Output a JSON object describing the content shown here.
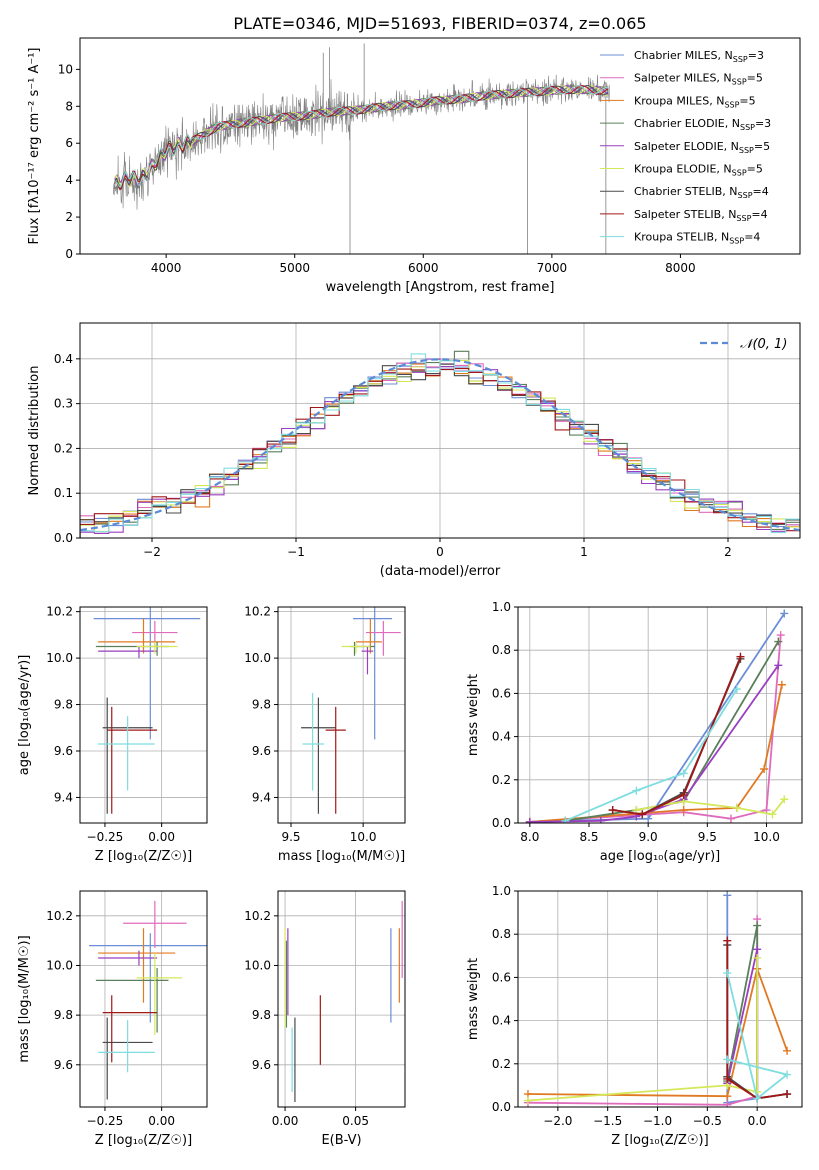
{
  "title": "PLATE=0346, MJD=51693, FIBERID=0374, z=0.065",
  "colors": {
    "Chabrier MILES": "#6b8ed6",
    "Salpeter MILES": "#e06bbd",
    "Kroupa MILES": "#e07a22",
    "Chabrier ELODIE": "#5a7f5a",
    "Salpeter ELODIE": "#9a3fbf",
    "Kroupa ELODIE": "#d4e85a",
    "Chabrier STELIB": "#4a4a4a",
    "Salpeter STELIB": "#a01818",
    "Kroupa STELIB": "#7fdde0",
    "data": "#808080",
    "normal": "#5b8bd6"
  },
  "chart_data": [
    {
      "id": "spectrum",
      "type": "line",
      "xlabel": "wavelength [Angstrom, rest frame]",
      "ylabel": "Flux [fλ10⁻¹⁷ erg cm⁻² s⁻¹ A⁻¹]",
      "xlim": [
        3330,
        8930
      ],
      "ylim": [
        0,
        11.7
      ],
      "xticks": [
        4000,
        5000,
        6000,
        7000,
        8000
      ],
      "yticks": [
        0,
        2,
        4,
        6,
        8,
        10
      ],
      "legend_position": "top-right",
      "legend": [
        {
          "label": "Chabrier MILES, N",
          "sub": "SSP",
          "tail": "=3",
          "key": "Chabrier MILES"
        },
        {
          "label": "Salpeter MILES, N",
          "sub": "SSP",
          "tail": "=5",
          "key": "Salpeter MILES"
        },
        {
          "label": "Kroupa MILES, N",
          "sub": "SSP",
          "tail": "=5",
          "key": "Kroupa MILES"
        },
        {
          "label": "Chabrier ELODIE, N",
          "sub": "SSP",
          "tail": "=3",
          "key": "Chabrier ELODIE"
        },
        {
          "label": "Salpeter ELODIE, N",
          "sub": "SSP",
          "tail": "=5",
          "key": "Salpeter ELODIE"
        },
        {
          "label": "Kroupa ELODIE, N",
          "sub": "SSP",
          "tail": "=5",
          "key": "Kroupa ELODIE"
        },
        {
          "label": "Chabrier STELIB, N",
          "sub": "SSP",
          "tail": "=4",
          "key": "Chabrier STELIB"
        },
        {
          "label": "Salpeter STELIB, N",
          "sub": "SSP",
          "tail": "=4",
          "key": "Salpeter STELIB"
        },
        {
          "label": "Kroupa STELIB, N",
          "sub": "SSP",
          "tail": "=4",
          "key": "Kroupa STELIB"
        }
      ],
      "continuum": {
        "x": [
          3600,
          3700,
          3800,
          3900,
          4000,
          4100,
          4200,
          4300,
          4400,
          4500,
          4700,
          4900,
          5100,
          5300,
          5500,
          5700,
          5900,
          6100,
          6300,
          6500,
          6700,
          6900,
          7100,
          7300,
          7450
        ],
        "y": [
          3.8,
          4.1,
          4.0,
          4.8,
          5.6,
          5.9,
          6.1,
          6.5,
          6.9,
          7.0,
          7.2,
          7.4,
          7.5,
          7.7,
          7.8,
          8.0,
          8.1,
          8.3,
          8.4,
          8.6,
          8.7,
          8.8,
          8.9,
          8.9,
          8.8
        ]
      },
      "data_noise": 1.6
    },
    {
      "id": "residuals",
      "type": "histogram",
      "xlabel": "(data-model)/error",
      "ylabel": "Normed distribution",
      "xlim": [
        -2.5,
        2.5
      ],
      "ylim": [
        0,
        0.48
      ],
      "xticks": [
        -2,
        -1,
        0,
        1,
        2
      ],
      "yticks": [
        0.0,
        0.1,
        0.2,
        0.3,
        0.4
      ],
      "legend": "𝒩(0, 1)",
      "legend_position": "top-right",
      "bin_width": 0.1
    },
    {
      "id": "age-vs-Z",
      "type": "errorbar",
      "xlabel": "Z [log₁₀(Z/Z☉)]",
      "ylabel": "age  [log₁₀(age/yr)]",
      "xlim": [
        -0.36,
        0.2
      ],
      "ylim": [
        9.29,
        10.22
      ],
      "xticks": [
        -0.25,
        0.0
      ],
      "yticks": [
        9.4,
        9.6,
        9.8,
        10.0,
        10.2
      ],
      "points": [
        {
          "key": "Chabrier MILES",
          "x": -0.05,
          "y": 10.17,
          "xerr": [
            0.25,
            0.22
          ],
          "yerr": [
            0.52,
            0.05
          ]
        },
        {
          "key": "Salpeter MILES",
          "x": -0.03,
          "y": 10.11,
          "xerr": [
            0.1,
            0.1
          ],
          "yerr": [
            0.06,
            0.05
          ]
        },
        {
          "key": "Kroupa MILES",
          "x": -0.08,
          "y": 10.07,
          "xerr": [
            0.2,
            0.14
          ],
          "yerr": [
            0.05,
            0.1
          ]
        },
        {
          "key": "Chabrier ELODIE",
          "x": -0.02,
          "y": 10.05,
          "xerr": [
            0.27,
            0.05
          ],
          "yerr": [
            0.04,
            0.02
          ]
        },
        {
          "key": "Salpeter ELODIE",
          "x": -0.1,
          "y": 10.03,
          "xerr": [
            0.18,
            0.08
          ],
          "yerr": [
            0.03,
            0.02
          ]
        },
        {
          "key": "Kroupa ELODIE",
          "x": -0.03,
          "y": 10.05,
          "xerr": [
            0.08,
            0.1
          ],
          "yerr": [
            0.03,
            0.02
          ]
        },
        {
          "key": "Chabrier STELIB",
          "x": -0.24,
          "y": 9.7,
          "xerr": [
            0.02,
            0.2
          ],
          "yerr": [
            0.37,
            0.13
          ]
        },
        {
          "key": "Salpeter STELIB",
          "x": -0.22,
          "y": 9.69,
          "xerr": [
            0.02,
            0.2
          ],
          "yerr": [
            0.36,
            0.1
          ]
        },
        {
          "key": "Kroupa STELIB",
          "x": -0.15,
          "y": 9.63,
          "xerr": [
            0.13,
            0.12
          ],
          "yerr": [
            0.2,
            0.12
          ]
        }
      ]
    },
    {
      "id": "age-vs-mass",
      "type": "errorbar",
      "xlabel": "mass [log₁₀(M/M☉)]",
      "ylabel": "",
      "xlim": [
        9.41,
        10.29
      ],
      "ylim": [
        9.29,
        10.22
      ],
      "xticks": [
        9.5,
        10.0
      ],
      "yticks": [
        9.4,
        9.6,
        9.8,
        10.0,
        10.2
      ],
      "points": [
        {
          "key": "Chabrier MILES",
          "x": 10.08,
          "y": 10.17,
          "xerr": [
            0.15,
            0.12
          ],
          "yerr": [
            0.52,
            0.05
          ]
        },
        {
          "key": "Salpeter MILES",
          "x": 10.14,
          "y": 10.11,
          "xerr": [
            0.12,
            0.12
          ],
          "yerr": [
            0.1,
            0.05
          ]
        },
        {
          "key": "Kroupa MILES",
          "x": 10.05,
          "y": 10.07,
          "xerr": [
            0.1,
            0.08
          ],
          "yerr": [
            0.05,
            0.1
          ]
        },
        {
          "key": "Chabrier ELODIE",
          "x": 9.94,
          "y": 10.05,
          "xerr": [
            0.03,
            0.14
          ],
          "yerr": [
            0.04,
            0.02
          ]
        },
        {
          "key": "Salpeter ELODIE",
          "x": 10.03,
          "y": 10.03,
          "xerr": [
            0.04,
            0.04
          ],
          "yerr": [
            0.1,
            0.02
          ]
        },
        {
          "key": "Kroupa ELODIE",
          "x": 9.95,
          "y": 10.05,
          "xerr": [
            0.1,
            0.1
          ],
          "yerr": [
            0.03,
            0.02
          ]
        },
        {
          "key": "Chabrier STELIB",
          "x": 9.69,
          "y": 9.7,
          "xerr": [
            0.12,
            0.12
          ],
          "yerr": [
            0.37,
            0.13
          ]
        },
        {
          "key": "Salpeter STELIB",
          "x": 9.81,
          "y": 9.69,
          "xerr": [
            0.07,
            0.07
          ],
          "yerr": [
            0.36,
            0.1
          ]
        },
        {
          "key": "Kroupa STELIB",
          "x": 9.65,
          "y": 9.63,
          "xerr": [
            0.07,
            0.08
          ],
          "yerr": [
            0.2,
            0.22
          ]
        }
      ]
    },
    {
      "id": "weight-vs-age",
      "type": "line",
      "xlabel": "age  [log₁₀(age/yr)]",
      "ylabel": "mass weight",
      "xlim": [
        7.9,
        10.3
      ],
      "ylim": [
        0,
        1
      ],
      "xticks": [
        8.0,
        8.5,
        9.0,
        9.5,
        10.0
      ],
      "yticks": [
        0.0,
        0.2,
        0.4,
        0.6,
        0.8,
        1.0
      ],
      "series": [
        {
          "key": "Chabrier MILES",
          "x": [
            8.3,
            9.0,
            10.15
          ],
          "y": [
            0.01,
            0.02,
            0.97
          ]
        },
        {
          "key": "Salpeter MILES",
          "x": [
            8.0,
            9.3,
            9.7,
            10.0,
            10.12
          ],
          "y": [
            0.005,
            0.05,
            0.02,
            0.06,
            0.87
          ]
        },
        {
          "key": "Kroupa MILES",
          "x": [
            8.0,
            9.3,
            9.75,
            9.98,
            10.13
          ],
          "y": [
            0.005,
            0.06,
            0.07,
            0.25,
            0.64
          ]
        },
        {
          "key": "Chabrier ELODIE",
          "x": [
            8.3,
            8.9,
            9.3,
            10.1
          ],
          "y": [
            0.01,
            0.06,
            0.1,
            0.84
          ]
        },
        {
          "key": "Salpeter ELODIE",
          "x": [
            8.0,
            8.6,
            8.9,
            9.3,
            10.1
          ],
          "y": [
            0.005,
            0.01,
            0.03,
            0.11,
            0.73
          ]
        },
        {
          "key": "Kroupa ELODIE",
          "x": [
            8.9,
            9.3,
            9.75,
            10.05,
            10.15
          ],
          "y": [
            0.06,
            0.1,
            0.07,
            0.04,
            0.11
          ]
        },
        {
          "key": "Chabrier STELIB",
          "x": [
            8.7,
            8.95,
            9.3,
            9.78
          ],
          "y": [
            0.06,
            0.04,
            0.14,
            0.76
          ]
        },
        {
          "key": "Salpeter STELIB",
          "x": [
            8.7,
            8.95,
            9.3,
            9.78
          ],
          "y": [
            0.06,
            0.04,
            0.13,
            0.77
          ]
        },
        {
          "key": "Kroupa STELIB",
          "x": [
            8.3,
            8.9,
            9.3,
            9.75
          ],
          "y": [
            0.01,
            0.15,
            0.23,
            0.62
          ]
        }
      ]
    },
    {
      "id": "mass-vs-Z",
      "type": "errorbar",
      "xlabel": "Z [log₁₀(Z/Z☉)]",
      "ylabel": "mass [log₁₀(M/M☉)]",
      "xlim": [
        -0.36,
        0.2
      ],
      "ylim": [
        9.43,
        10.3
      ],
      "xticks": [
        -0.25,
        0.0
      ],
      "yticks": [
        9.6,
        9.8,
        10.0,
        10.2
      ],
      "points": [
        {
          "key": "Chabrier MILES",
          "x": -0.05,
          "y": 10.08,
          "xerr": [
            0.27,
            0.25
          ],
          "yerr": [
            0.31,
            0.05
          ]
        },
        {
          "key": "Salpeter MILES",
          "x": -0.03,
          "y": 10.17,
          "xerr": [
            0.14,
            0.14
          ],
          "yerr": [
            0.1,
            0.09
          ]
        },
        {
          "key": "Kroupa MILES",
          "x": -0.08,
          "y": 10.05,
          "xerr": [
            0.2,
            0.14
          ],
          "yerr": [
            0.2,
            0.1
          ]
        },
        {
          "key": "Chabrier ELODIE",
          "x": -0.02,
          "y": 9.94,
          "xerr": [
            0.27,
            0.05
          ],
          "yerr": [
            0.21,
            0.05
          ]
        },
        {
          "key": "Salpeter ELODIE",
          "x": -0.1,
          "y": 10.03,
          "xerr": [
            0.18,
            0.08
          ],
          "yerr": [
            0.03,
            0.03
          ]
        },
        {
          "key": "Kroupa ELODIE",
          "x": -0.03,
          "y": 9.95,
          "xerr": [
            0.08,
            0.12
          ],
          "yerr": [
            0.23,
            0.1
          ]
        },
        {
          "key": "Chabrier STELIB",
          "x": -0.24,
          "y": 9.69,
          "xerr": [
            0.02,
            0.2
          ],
          "yerr": [
            0.23,
            0.1
          ]
        },
        {
          "key": "Salpeter STELIB",
          "x": -0.22,
          "y": 9.81,
          "xerr": [
            0.04,
            0.2
          ],
          "yerr": [
            0.2,
            0.07
          ]
        },
        {
          "key": "Kroupa STELIB",
          "x": -0.15,
          "y": 9.65,
          "xerr": [
            0.13,
            0.12
          ],
          "yerr": [
            0.08,
            0.13
          ]
        }
      ]
    },
    {
      "id": "mass-vs-ebv",
      "type": "errorbar",
      "xlabel": "E(B-V)",
      "ylabel": "",
      "xlim": [
        -0.005,
        0.085
      ],
      "ylim": [
        9.43,
        10.3
      ],
      "xticks": [
        0.0,
        0.05
      ],
      "yticks": [
        9.6,
        9.8,
        10.0,
        10.2
      ],
      "points": [
        {
          "key": "Chabrier MILES",
          "x": 0.075,
          "y": 10.0,
          "xerr": [
            0,
            0
          ],
          "yerr": [
            0.23,
            0.15
          ]
        },
        {
          "key": "Salpeter MILES",
          "x": 0.083,
          "y": 10.15,
          "xerr": [
            0,
            0
          ],
          "yerr": [
            0.2,
            0.11
          ]
        },
        {
          "key": "Kroupa MILES",
          "x": 0.081,
          "y": 10.05,
          "xerr": [
            0,
            0
          ],
          "yerr": [
            0.2,
            0.1
          ]
        },
        {
          "key": "Chabrier ELODIE",
          "x": 0.001,
          "y": 9.95,
          "xerr": [
            0,
            0
          ],
          "yerr": [
            0.2,
            0.15
          ]
        },
        {
          "key": "Salpeter ELODIE",
          "x": 0.002,
          "y": 10.0,
          "xerr": [
            0,
            0
          ],
          "yerr": [
            0.2,
            0.15
          ]
        },
        {
          "key": "Kroupa ELODIE",
          "x": 0.0,
          "y": 9.95,
          "xerr": [
            0,
            0
          ],
          "yerr": [
            0.2,
            0.2
          ]
        },
        {
          "key": "Chabrier STELIB",
          "x": 0.007,
          "y": 9.62,
          "xerr": [
            0,
            0
          ],
          "yerr": [
            0.17,
            0.17
          ]
        },
        {
          "key": "Salpeter STELIB",
          "x": 0.025,
          "y": 9.74,
          "xerr": [
            0,
            0
          ],
          "yerr": [
            0.14,
            0.14
          ]
        },
        {
          "key": "Kroupa STELIB",
          "x": 0.005,
          "y": 9.62,
          "xerr": [
            0,
            0
          ],
          "yerr": [
            0.13,
            0.13
          ]
        }
      ]
    },
    {
      "id": "weight-vs-Z",
      "type": "line",
      "xlabel": "Z [log₁₀(Z/Z☉)]",
      "ylabel": "mass weight",
      "xlim": [
        -2.4,
        0.45
      ],
      "ylim": [
        0,
        1
      ],
      "xticks": [
        -2.0,
        -1.5,
        -1.0,
        -0.5,
        0.0
      ],
      "yticks": [
        0.0,
        0.2,
        0.4,
        0.6,
        0.8,
        1.0
      ],
      "series": [
        {
          "key": "Chabrier MILES",
          "x": [
            -0.3,
            -0.3,
            0.3
          ],
          "y": [
            0.98,
            0.02,
            0.06
          ]
        },
        {
          "key": "Salpeter MILES",
          "x": [
            -2.3,
            -0.3,
            0.0,
            0.0
          ],
          "y": [
            0.02,
            0.01,
            0.05,
            0.87
          ]
        },
        {
          "key": "Kroupa MILES",
          "x": [
            -2.3,
            -0.3,
            0.0,
            0.3
          ],
          "y": [
            0.06,
            0.05,
            0.64,
            0.26
          ]
        },
        {
          "key": "Chabrier ELODIE",
          "x": [
            -0.3,
            0.0,
            0.0
          ],
          "y": [
            0.12,
            0.84,
            0.04
          ]
        },
        {
          "key": "Salpeter ELODIE",
          "x": [
            -0.3,
            0.0,
            0.0
          ],
          "y": [
            0.11,
            0.73,
            0.04
          ]
        },
        {
          "key": "Kroupa ELODIE",
          "x": [
            -2.3,
            -0.3,
            0.0,
            0.0
          ],
          "y": [
            0.03,
            0.1,
            0.07,
            0.69
          ]
        },
        {
          "key": "Chabrier STELIB",
          "x": [
            -0.3,
            -0.3,
            0.0,
            0.3
          ],
          "y": [
            0.75,
            0.14,
            0.04,
            0.06
          ]
        },
        {
          "key": "Salpeter STELIB",
          "x": [
            -0.3,
            -0.3,
            0.0,
            0.3
          ],
          "y": [
            0.77,
            0.13,
            0.04,
            0.06
          ]
        },
        {
          "key": "Kroupa STELIB",
          "x": [
            -0.3,
            0.0,
            0.3,
            -0.3
          ],
          "y": [
            0.62,
            0.04,
            0.15,
            0.22
          ]
        }
      ]
    }
  ]
}
